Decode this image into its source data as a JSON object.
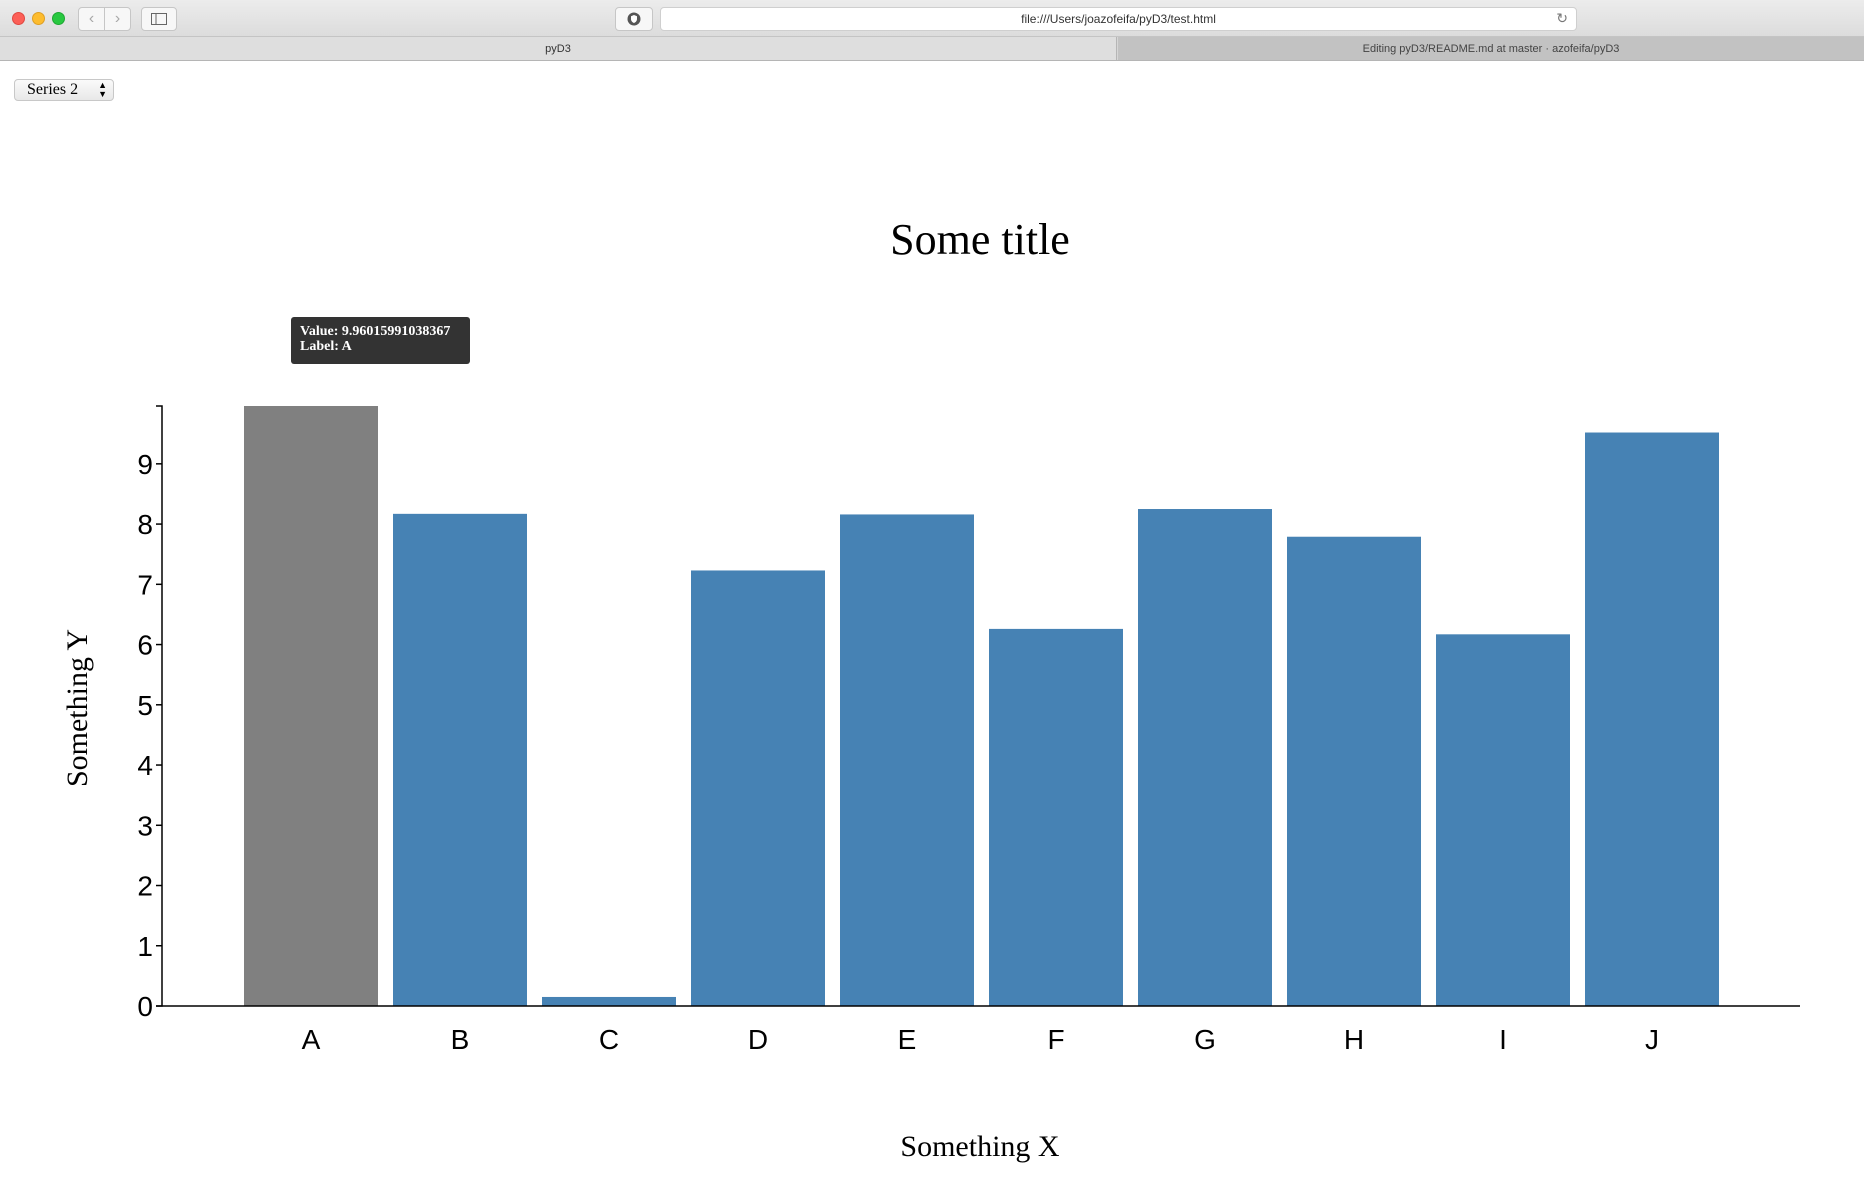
{
  "browser": {
    "url": "file:///Users/joazofeifa/pyD3/test.html",
    "tabs": [
      {
        "label": "pyD3"
      },
      {
        "label": "Editing pyD3/README.md at master · azofeifa/pyD3"
      }
    ],
    "icons": {
      "back": "chevron-left-icon",
      "forward": "chevron-right-icon",
      "sidebar": "sidebar-icon",
      "shield": "shield-icon",
      "reload": "reload-icon"
    }
  },
  "series_select": {
    "value": "Series 2"
  },
  "tooltip": {
    "value_line": "Value: 9.96015991038367",
    "label_line": "Label: A"
  },
  "chart_data": {
    "type": "bar",
    "title": "Some title",
    "xlabel": "Something X",
    "ylabel": "Something Y",
    "categories": [
      "A",
      "B",
      "C",
      "D",
      "E",
      "F",
      "G",
      "H",
      "I",
      "J"
    ],
    "values": [
      9.96015991038367,
      8.17,
      0.15,
      7.23,
      8.16,
      6.26,
      8.25,
      7.79,
      6.17,
      9.52
    ],
    "yticks": [
      "0",
      "1",
      "2",
      "3",
      "4",
      "5",
      "6",
      "7",
      "8",
      "9"
    ],
    "ylim": [
      0,
      9.96015991038367
    ],
    "highlighted": "A",
    "bar_color": "#4682b4",
    "highlight_color": "#808080",
    "grid": false
  }
}
